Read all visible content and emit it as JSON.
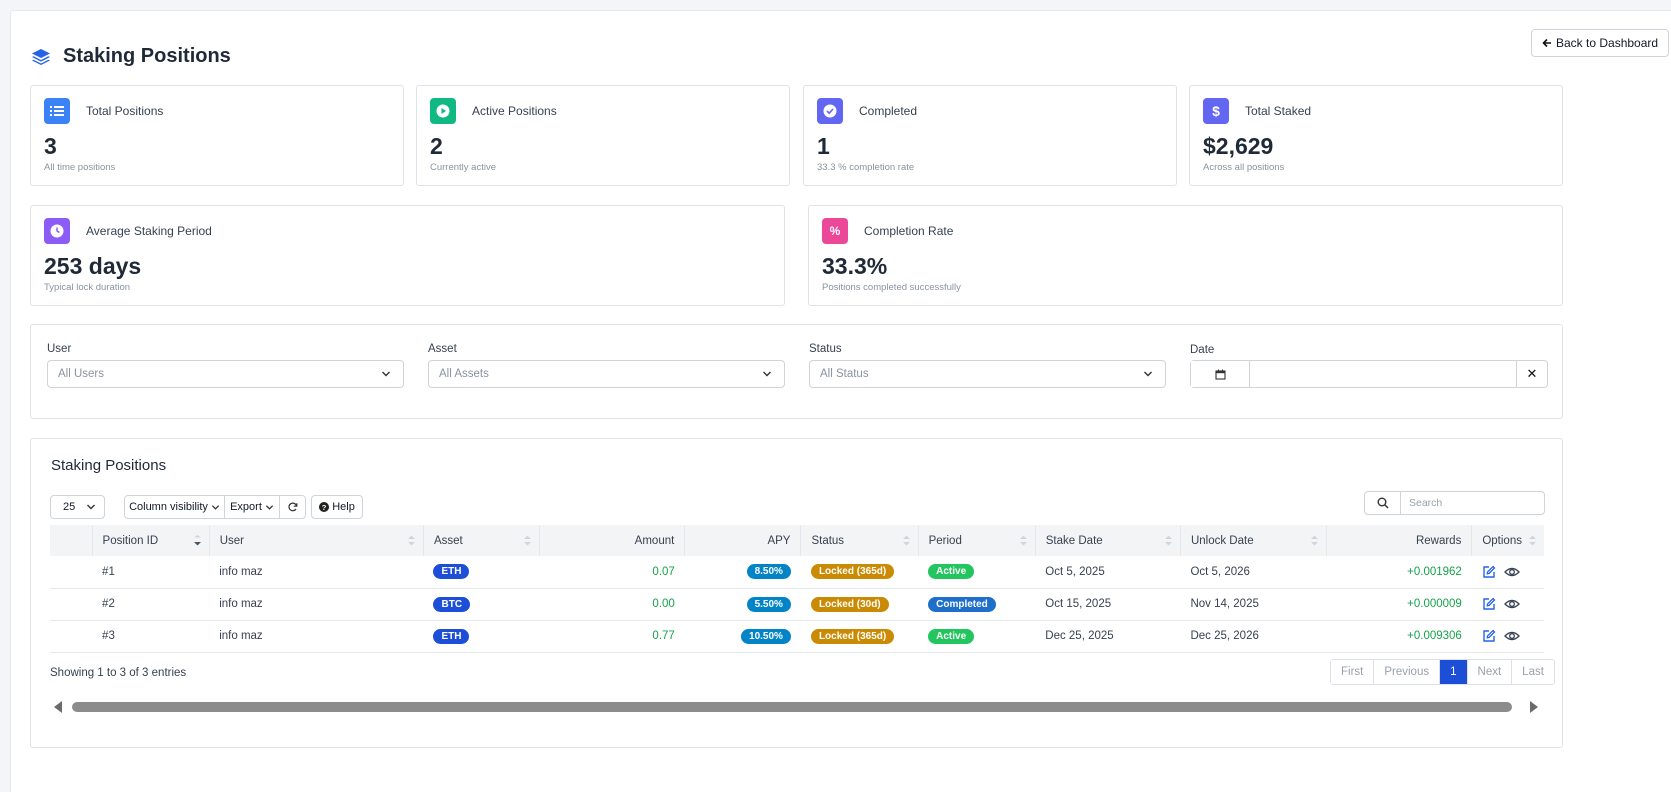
{
  "header": {
    "title": "Staking Positions",
    "back_label": "Back to Dashboard"
  },
  "stats": [
    {
      "label": "Total Positions",
      "value": "3",
      "sub": "All time positions",
      "color": "#3b82f6",
      "icon": "list-icon"
    },
    {
      "label": "Active Positions",
      "value": "2",
      "sub": "Currently active",
      "color": "#10b981",
      "icon": "play-icon"
    },
    {
      "label": "Completed",
      "value": "1",
      "sub": "33.3 % completion rate",
      "color": "#6366f1",
      "icon": "check-circle-icon"
    },
    {
      "label": "Total Staked",
      "value": "$2,629",
      "sub": "Across all positions",
      "color": "#6366f1",
      "icon": "dollar-icon"
    },
    {
      "label": "Average Staking Period",
      "value": "253 days",
      "sub": "Typical lock duration",
      "color": "#8b5cf6",
      "icon": "clock-icon"
    },
    {
      "label": "Completion Rate",
      "value": "33.3%",
      "sub": "Positions completed successfully",
      "color": "#ec4899",
      "icon": "percent-icon"
    }
  ],
  "filters": {
    "user": {
      "label": "User",
      "value": "All Users"
    },
    "asset": {
      "label": "Asset",
      "value": "All Assets"
    },
    "status": {
      "label": "Status",
      "value": "All Status"
    },
    "date": {
      "label": "Date",
      "value": ""
    }
  },
  "table": {
    "title": "Staking Positions",
    "page_length": "25",
    "buttons": {
      "column_visibility": "Column visibility",
      "export": "Export",
      "help": "Help"
    },
    "search_placeholder": "Search",
    "columns": [
      "Position ID",
      "User",
      "Asset",
      "Amount",
      "APY",
      "Status",
      "Period",
      "Stake Date",
      "Unlock Date",
      "Rewards",
      "Options"
    ],
    "rows": [
      {
        "id": "#1",
        "user": "info maz",
        "asset": "ETH",
        "amount": "0.07",
        "apy": "8.50%",
        "status": "Locked (365d)",
        "period": "Active",
        "stake_date": "Oct 5, 2025",
        "unlock_date": "Oct 5, 2026",
        "rewards": "+0.001962"
      },
      {
        "id": "#2",
        "user": "info maz",
        "asset": "BTC",
        "amount": "0.00",
        "apy": "5.50%",
        "status": "Locked (30d)",
        "period": "Completed",
        "stake_date": "Oct 15, 2025",
        "unlock_date": "Nov 14, 2025",
        "rewards": "+0.000009"
      },
      {
        "id": "#3",
        "user": "info maz",
        "asset": "ETH",
        "amount": "0.77",
        "apy": "10.50%",
        "status": "Locked (365d)",
        "period": "Active",
        "stake_date": "Dec 25, 2025",
        "unlock_date": "Dec 25, 2026",
        "rewards": "+0.009306"
      }
    ],
    "info": "Showing 1 to 3 of 3 entries",
    "pagination": {
      "first": "First",
      "previous": "Previous",
      "current": "1",
      "next": "Next",
      "last": "Last"
    }
  }
}
